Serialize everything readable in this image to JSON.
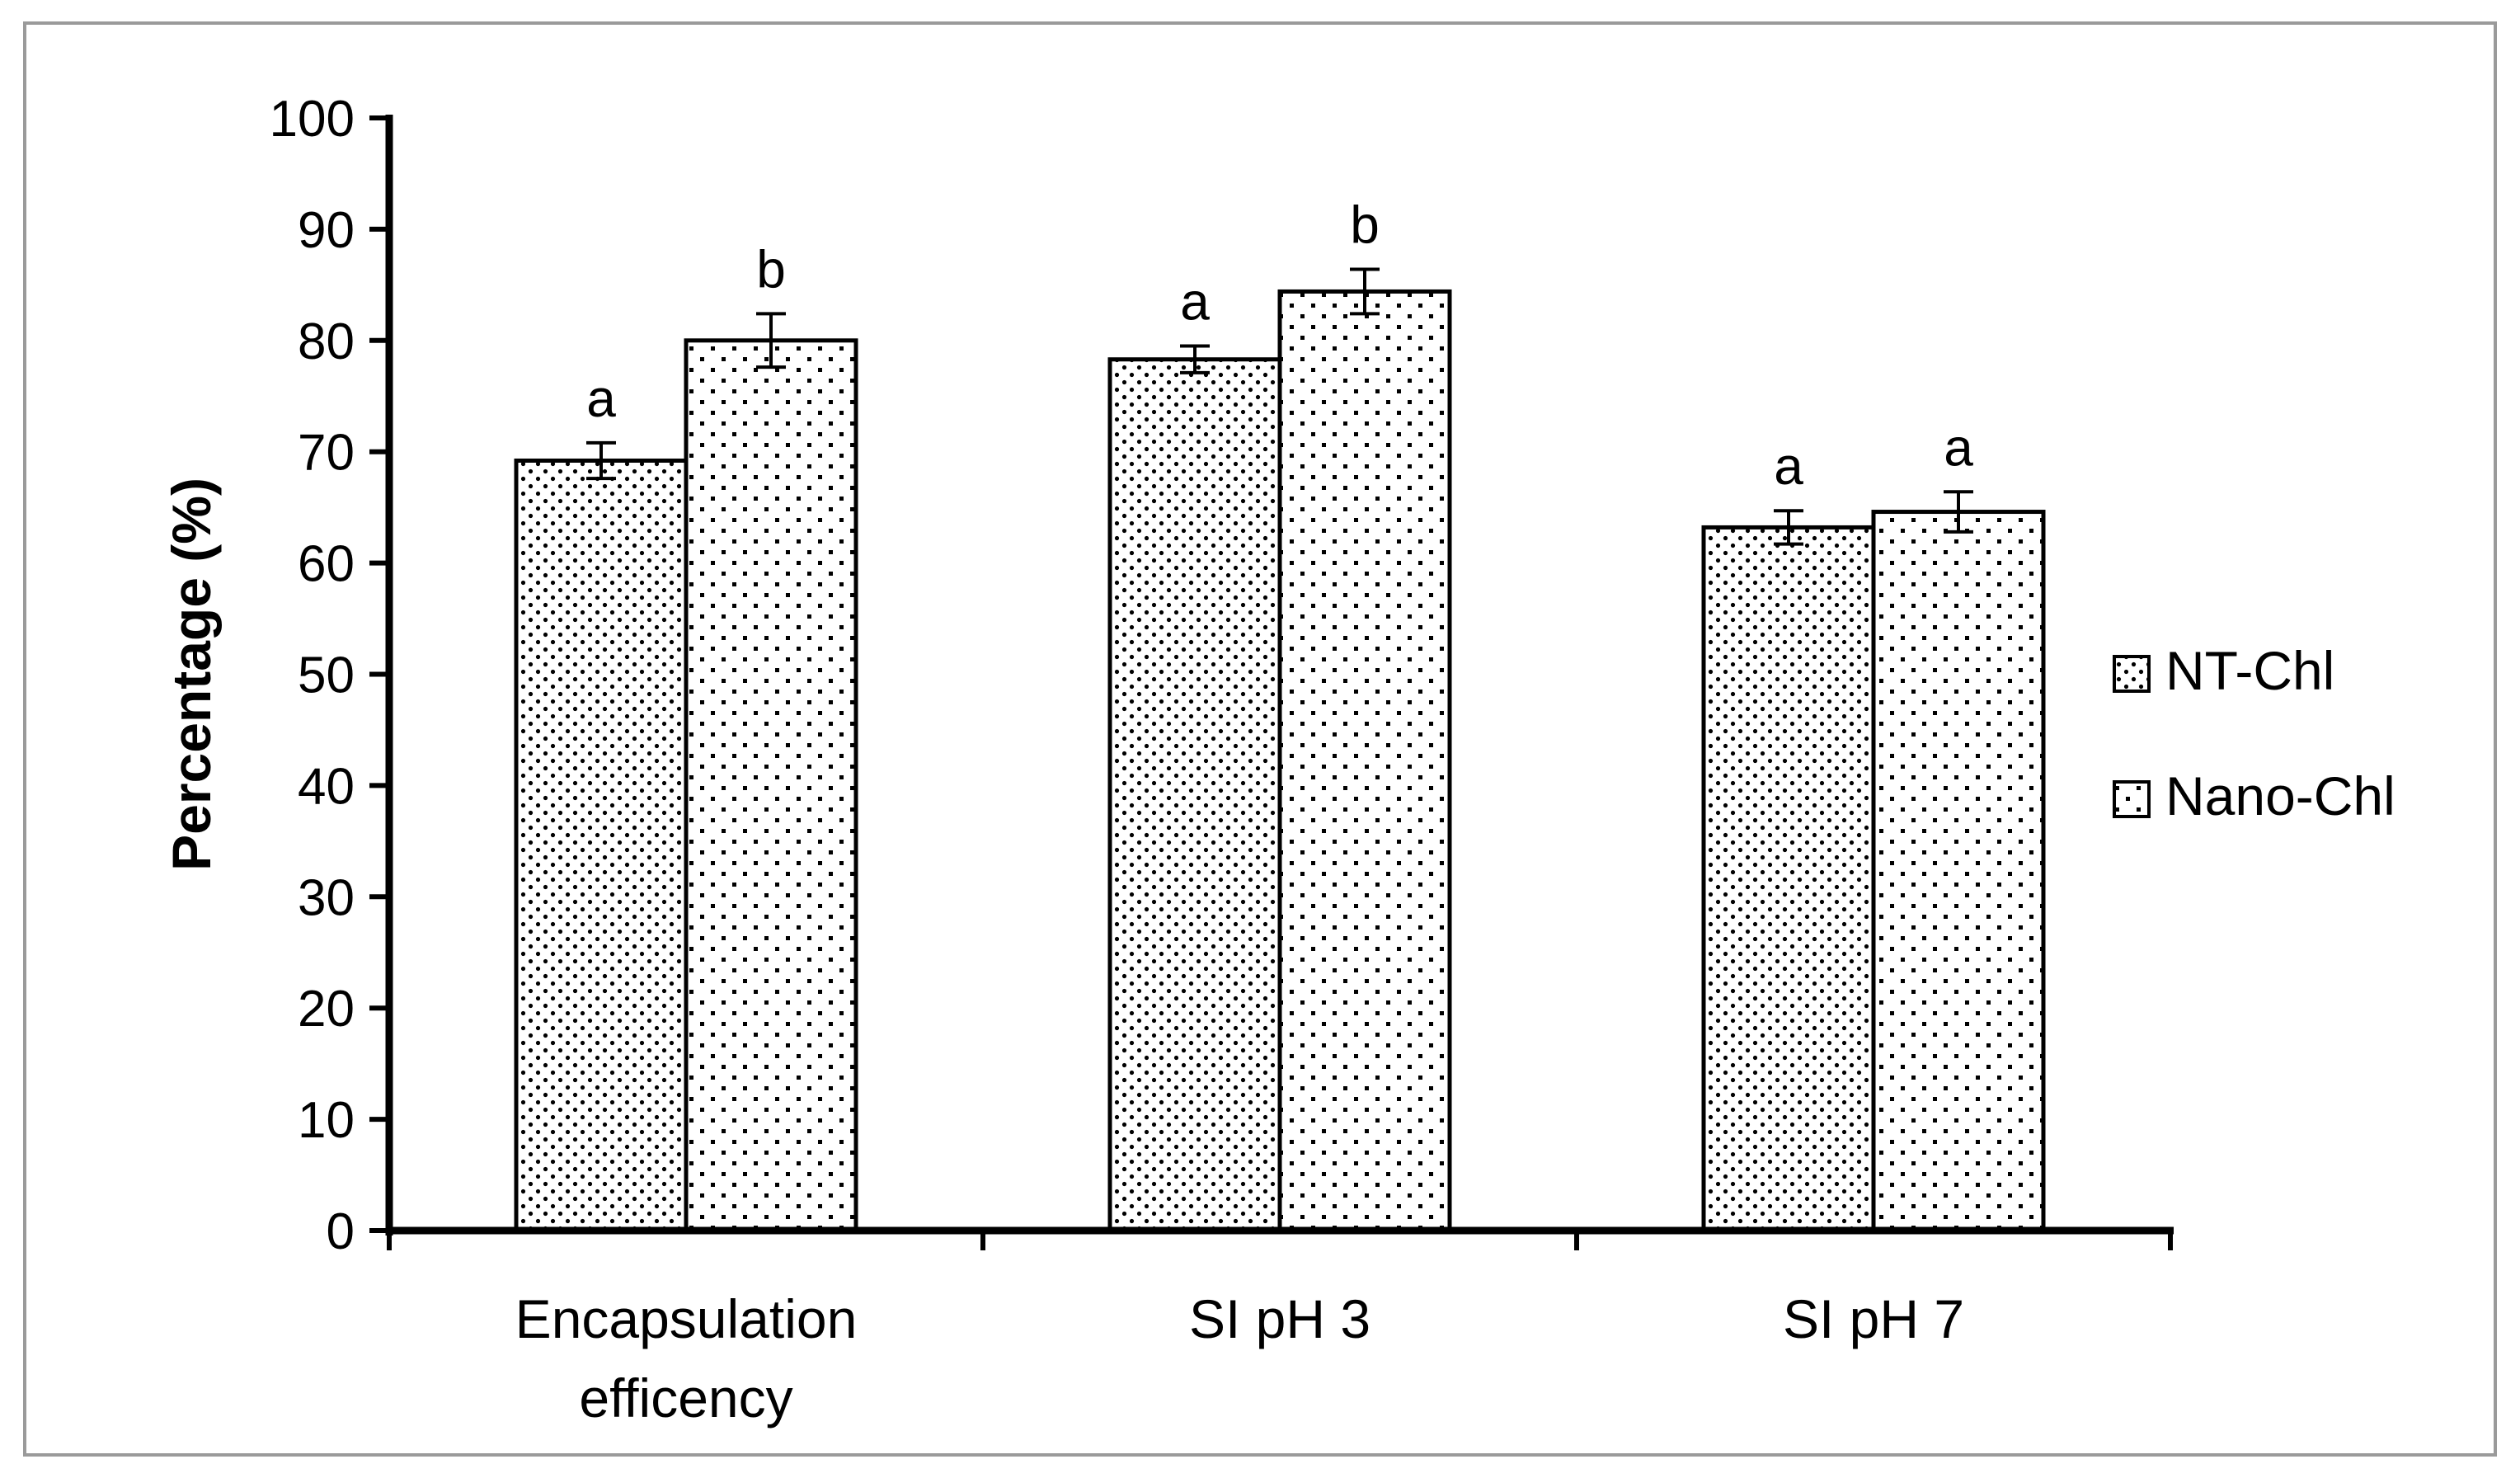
{
  "chart_data": {
    "type": "bar",
    "title": "",
    "xlabel": "",
    "ylabel": "Percentage (%)",
    "ylim": [
      0,
      100
    ],
    "yticks": [
      0,
      10,
      20,
      30,
      40,
      50,
      60,
      70,
      80,
      90,
      100
    ],
    "categories": [
      [
        "Encapsulation",
        "efficency"
      ],
      [
        "SI pH 3"
      ],
      [
        "SI pH 7"
      ]
    ],
    "series": [
      {
        "name": "NT-Chl",
        "pattern": "fine-dots",
        "values": [
          69.2,
          78.3,
          63.2
        ],
        "errors": [
          1.6,
          1.2,
          1.5
        ],
        "significance": [
          "a",
          "a",
          "a"
        ]
      },
      {
        "name": "Nano-Chl",
        "pattern": "sparse-dots",
        "values": [
          80.0,
          84.4,
          64.6
        ],
        "errors": [
          2.4,
          2.0,
          1.8
        ],
        "significance": [
          "b",
          "b",
          "a"
        ]
      }
    ],
    "legend_position": "right",
    "grid": false,
    "colors": {
      "bar_fill": "#ffffff",
      "pattern": "#000000",
      "stroke": "#000000",
      "frame": "#9a9a9a"
    }
  }
}
